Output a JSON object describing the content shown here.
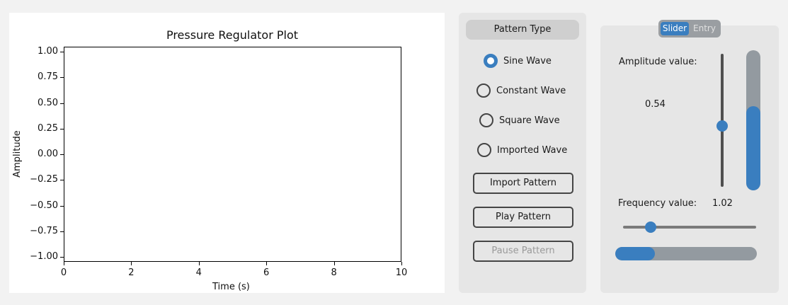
{
  "plot": {
    "title": "Pressure Regulator Plot",
    "xlabel": "Time (s)",
    "ylabel": "Amplitude",
    "xlim": [
      0,
      10
    ],
    "ylim": [
      -1.0,
      1.0
    ],
    "xticks": [
      "0",
      "2",
      "4",
      "6",
      "8",
      "10"
    ],
    "yticks": [
      "1.00",
      "0.75",
      "0.50",
      "0.25",
      "0.00",
      "−0.25",
      "−0.50",
      "−0.75",
      "−1.00"
    ]
  },
  "pattern": {
    "header": "Pattern Type",
    "options": [
      {
        "label": "Sine Wave",
        "selected": true
      },
      {
        "label": "Constant Wave",
        "selected": false
      },
      {
        "label": "Square Wave",
        "selected": false
      },
      {
        "label": "Imported Wave",
        "selected": false
      }
    ],
    "buttons": {
      "import": "Import Pattern",
      "play": "Play Pattern",
      "pause": "Pause Pattern"
    }
  },
  "controls": {
    "mode_tabs": {
      "slider": "Slider",
      "entry": "Entry",
      "active": "slider"
    },
    "amplitude_label": "Amplitude value:",
    "amplitude_value": "0.54",
    "amplitude_fraction": 0.46,
    "amplitude_bar_fraction": 0.6,
    "frequency_label": "Frequency value:",
    "frequency_value": "1.02",
    "frequency_fraction": 0.21,
    "frequency_bar_fraction": 0.28,
    "accent_color": "#3a7ebf"
  }
}
